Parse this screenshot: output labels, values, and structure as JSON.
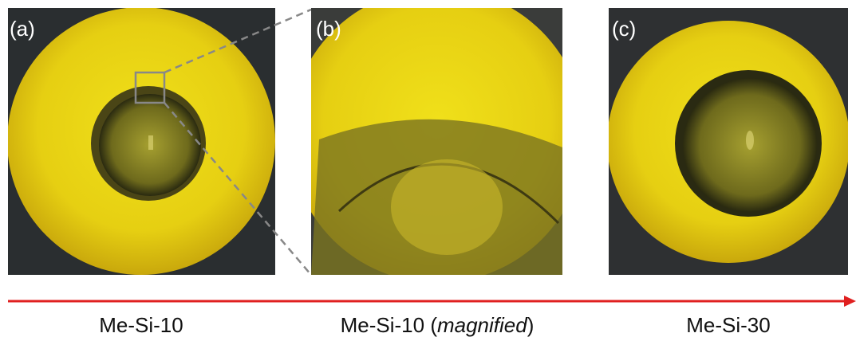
{
  "panels": [
    {
      "label": "(a)",
      "caption": [
        "Me-Si-10"
      ]
    },
    {
      "label": "(b)",
      "caption": [
        "Me-Si-10 (",
        "magnified",
        ")"
      ]
    },
    {
      "label": "(c)",
      "caption": [
        "Me-Si-30"
      ]
    }
  ]
}
